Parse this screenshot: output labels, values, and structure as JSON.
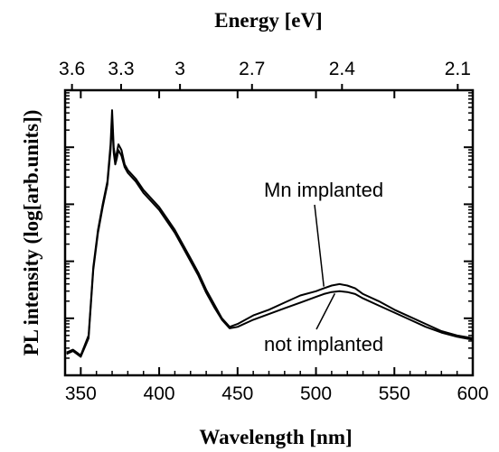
{
  "chart_data": {
    "type": "line",
    "xlabel": "Wavelength [nm]",
    "ylabel": "PL intensity (log[arb.units])",
    "top_axis_label": "Energy [eV]",
    "xlim": [
      340,
      600
    ],
    "x_ticks": [
      350,
      400,
      450,
      500,
      550,
      600
    ],
    "x_tick_labels": [
      "350",
      "400",
      "450",
      "500",
      "550",
      "600"
    ],
    "top_ticks_ev": [
      3.6,
      3.3,
      3,
      2.7,
      2.4,
      2.1
    ],
    "top_tick_labels": [
      "3.6",
      "3.3",
      "3",
      "2.7",
      "2.4",
      "2.1"
    ],
    "y_scale": "log",
    "y_tick_labels_shown": false,
    "ylim": [
      0,
      10
    ],
    "y_major_ticks": [
      2,
      4,
      6,
      8
    ],
    "grid": false,
    "legend": "none",
    "series": [
      {
        "label_text": "Mn implanted",
        "color": "#000000",
        "x": [
          341,
          345,
          350,
          355,
          358,
          361,
          364,
          367,
          369,
          370,
          371,
          372,
          373,
          374,
          376,
          378,
          380,
          385,
          390,
          395,
          400,
          405,
          410,
          415,
          420,
          425,
          430,
          435,
          440,
          445,
          450,
          460,
          470,
          480,
          490,
          500,
          505,
          510,
          515,
          520,
          525,
          530,
          540,
          550,
          560,
          570,
          580,
          590,
          600
        ],
        "y": [
          0.8,
          0.9,
          0.7,
          1.4,
          3.8,
          5.1,
          6.0,
          6.8,
          8.1,
          9.3,
          8.0,
          7.6,
          7.8,
          8.1,
          7.9,
          7.4,
          7.2,
          6.9,
          6.5,
          6.2,
          5.9,
          5.5,
          5.1,
          4.6,
          4.1,
          3.6,
          3.0,
          2.5,
          2.0,
          1.7,
          1.8,
          2.1,
          2.3,
          2.55,
          2.8,
          2.95,
          3.05,
          3.15,
          3.2,
          3.15,
          3.05,
          2.85,
          2.6,
          2.3,
          2.05,
          1.8,
          1.55,
          1.4,
          1.3
        ]
      },
      {
        "label_text": "not implanted",
        "color": "#000000",
        "x": [
          341,
          345,
          350,
          355,
          358,
          361,
          364,
          367,
          369,
          370,
          371,
          372,
          373,
          374,
          376,
          378,
          380,
          385,
          390,
          395,
          400,
          405,
          410,
          415,
          420,
          425,
          430,
          435,
          440,
          445,
          450,
          460,
          470,
          480,
          490,
          500,
          505,
          510,
          515,
          520,
          525,
          530,
          540,
          550,
          560,
          570,
          580,
          590,
          600
        ],
        "y": [
          0.75,
          0.85,
          0.65,
          1.3,
          3.7,
          5.0,
          5.9,
          6.7,
          7.9,
          8.9,
          7.8,
          7.4,
          7.6,
          7.9,
          7.7,
          7.3,
          7.1,
          6.8,
          6.4,
          6.1,
          5.8,
          5.4,
          5.0,
          4.5,
          4.0,
          3.5,
          2.9,
          2.4,
          1.95,
          1.65,
          1.7,
          1.95,
          2.15,
          2.35,
          2.55,
          2.75,
          2.85,
          2.92,
          2.95,
          2.92,
          2.85,
          2.7,
          2.45,
          2.2,
          1.95,
          1.7,
          1.5,
          1.35,
          1.25
        ]
      }
    ],
    "annotations": [
      {
        "text": "Mn implanted",
        "points_to_x": 505,
        "points_to_series": "Mn implanted"
      },
      {
        "text": "not implanted",
        "points_to_x": 512,
        "points_to_series": "not implanted"
      }
    ]
  }
}
